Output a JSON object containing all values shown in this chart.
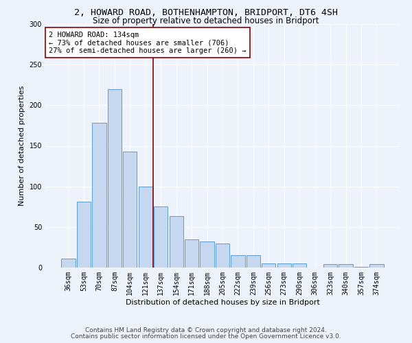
{
  "title1": "2, HOWARD ROAD, BOTHENHAMPTON, BRIDPORT, DT6 4SH",
  "title2": "Size of property relative to detached houses in Bridport",
  "xlabel": "Distribution of detached houses by size in Bridport",
  "ylabel": "Number of detached properties",
  "categories": [
    "36sqm",
    "53sqm",
    "70sqm",
    "87sqm",
    "104sqm",
    "121sqm",
    "137sqm",
    "154sqm",
    "171sqm",
    "188sqm",
    "205sqm",
    "222sqm",
    "239sqm",
    "256sqm",
    "273sqm",
    "290sqm",
    "306sqm",
    "323sqm",
    "340sqm",
    "357sqm",
    "374sqm"
  ],
  "values": [
    11,
    81,
    178,
    220,
    143,
    100,
    75,
    63,
    35,
    32,
    30,
    15,
    15,
    5,
    5,
    5,
    0,
    4,
    4,
    1,
    4
  ],
  "bar_color": "#c5d8f0",
  "bar_edge_color": "#5b9bd5",
  "vline_x": 5.5,
  "vline_color": "#8b0000",
  "annotation_text": "2 HOWARD ROAD: 134sqm\n← 73% of detached houses are smaller (706)\n27% of semi-detached houses are larger (260) →",
  "annotation_box_color": "#ffffff",
  "annotation_box_edge": "#8b0000",
  "ylim": [
    0,
    300
  ],
  "yticks": [
    0,
    50,
    100,
    150,
    200,
    250,
    300
  ],
  "background_color": "#eef2fa",
  "grid_color": "#ffffff",
  "footer1": "Contains HM Land Registry data © Crown copyright and database right 2024.",
  "footer2": "Contains public sector information licensed under the Open Government Licence v3.0.",
  "title1_fontsize": 9.5,
  "title2_fontsize": 8.5,
  "xlabel_fontsize": 8,
  "ylabel_fontsize": 8,
  "tick_fontsize": 7,
  "annotation_fontsize": 7.5,
  "footer_fontsize": 6.5
}
